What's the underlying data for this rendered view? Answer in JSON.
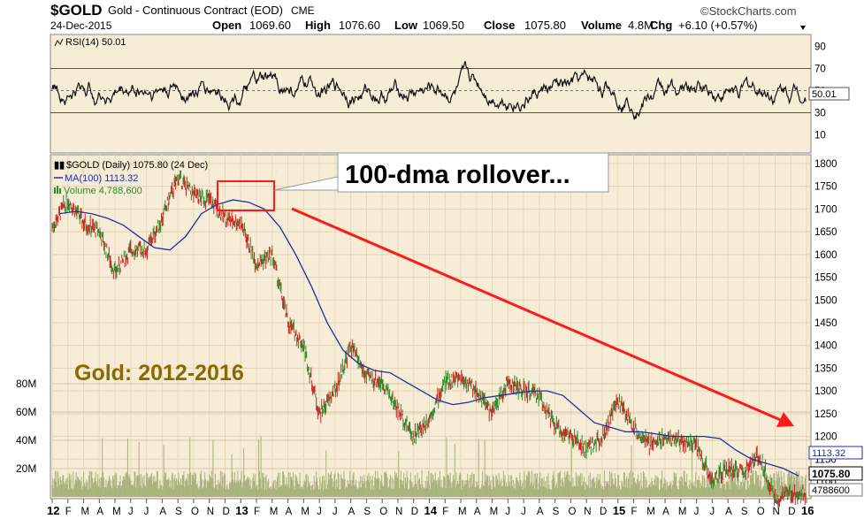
{
  "header": {
    "symbol": "$GOLD",
    "name": "Gold - Continuous Contract (EOD)",
    "exchange": "CME",
    "brand": "©StockCharts.com",
    "date": "24-Dec-2015",
    "open_label": "Open",
    "open": "1069.60",
    "high_label": "High",
    "high": "1076.60",
    "low_label": "Low",
    "low": "1069.50",
    "close_label": "Close",
    "close": "1075.80",
    "volume_label": "Volume",
    "volume": "4.8M",
    "chg_label": "Chg",
    "chg": "+6.10 (+0.57%)"
  },
  "rsi_panel": {
    "label": "RSI(14) 50.01",
    "value_badge": "50.01",
    "ticks": [
      "90",
      "70",
      "50",
      "30",
      "10"
    ]
  },
  "price_panel": {
    "legend_main": "$GOLD (Daily) 1075.80 (24 Dec)",
    "legend_ma": "MA(100) 1113.32",
    "legend_volume": "Volume 4,788,600",
    "annotation": "100-dma rollover...",
    "title_overlay": "Gold: 2012-2016",
    "y_ticks": [
      "1800",
      "1750",
      "1700",
      "1650",
      "1600",
      "1550",
      "1500",
      "1450",
      "1400",
      "1350",
      "1300",
      "1250",
      "1200",
      "1150",
      "1100"
    ],
    "volume_ticks": [
      "80M",
      "60M",
      "40M",
      "20M"
    ],
    "badge_ma": "1113.32",
    "badge_close": "1075.80",
    "badge_volume": "4788600"
  },
  "x_axis": [
    "12",
    "F",
    "M",
    "A",
    "M",
    "J",
    "J",
    "A",
    "S",
    "O",
    "N",
    "D",
    "13",
    "F",
    "M",
    "A",
    "M",
    "J",
    "J",
    "A",
    "S",
    "O",
    "N",
    "D",
    "14",
    "F",
    "M",
    "A",
    "M",
    "J",
    "J",
    "A",
    "S",
    "O",
    "N",
    "D",
    "15",
    "F",
    "M",
    "A",
    "M",
    "J",
    "J",
    "A",
    "S",
    "O",
    "N",
    "D",
    "16"
  ],
  "colors": {
    "panel_bg": "#f7ecd6",
    "ma_line": "#1f2f9e",
    "trend_line": "#ff1a1a",
    "up_bar": "#2e8b2e",
    "down_bar": "#cc2222",
    "volume": "#9aa870",
    "annotation_text": "#8a6a00"
  },
  "chart_data": {
    "type": "line",
    "xlabel": "",
    "ylabel": "",
    "ylim": [
      1050,
      1820
    ],
    "x": [
      "2012-01",
      "2012-02",
      "2012-03",
      "2012-04",
      "2012-05",
      "2012-06",
      "2012-07",
      "2012-08",
      "2012-09",
      "2012-10",
      "2012-11",
      "2012-12",
      "2013-01",
      "2013-02",
      "2013-03",
      "2013-04",
      "2013-05",
      "2013-06",
      "2013-07",
      "2013-08",
      "2013-09",
      "2013-10",
      "2013-11",
      "2013-12",
      "2014-01",
      "2014-02",
      "2014-03",
      "2014-04",
      "2014-05",
      "2014-06",
      "2014-07",
      "2014-08",
      "2014-09",
      "2014-10",
      "2014-11",
      "2014-12",
      "2015-01",
      "2015-02",
      "2015-03",
      "2015-04",
      "2015-05",
      "2015-06",
      "2015-07",
      "2015-08",
      "2015-09",
      "2015-10",
      "2015-11",
      "2015-12"
    ],
    "series": [
      {
        "values": [
          1660,
          1720,
          1670,
          1650,
          1560,
          1610,
          1610,
          1680,
          1770,
          1730,
          1720,
          1680,
          1670,
          1580,
          1600,
          1450,
          1400,
          1250,
          1300,
          1400,
          1330,
          1320,
          1260,
          1200,
          1240,
          1320,
          1330,
          1300,
          1250,
          1320,
          1300,
          1290,
          1220,
          1200,
          1170,
          1200,
          1280,
          1220,
          1180,
          1200,
          1190,
          1180,
          1100,
          1130,
          1120,
          1160,
          1060,
          1075
        ]
      },
      {
        "name": "MA(100)",
        "values": [
          1690,
          1695,
          1690,
          1680,
          1665,
          1640,
          1615,
          1610,
          1640,
          1690,
          1710,
          1720,
          1715,
          1700,
          1660,
          1600,
          1530,
          1450,
          1390,
          1360,
          1345,
          1340,
          1320,
          1300,
          1280,
          1270,
          1275,
          1285,
          1290,
          1295,
          1300,
          1300,
          1290,
          1260,
          1230,
          1220,
          1210,
          1210,
          1205,
          1200,
          1200,
          1200,
          1195,
          1170,
          1150,
          1140,
          1130,
          1113
        ]
      }
    ],
    "annotations": [
      "100-dma rollover...",
      "Gold: 2012-2016"
    ]
  }
}
